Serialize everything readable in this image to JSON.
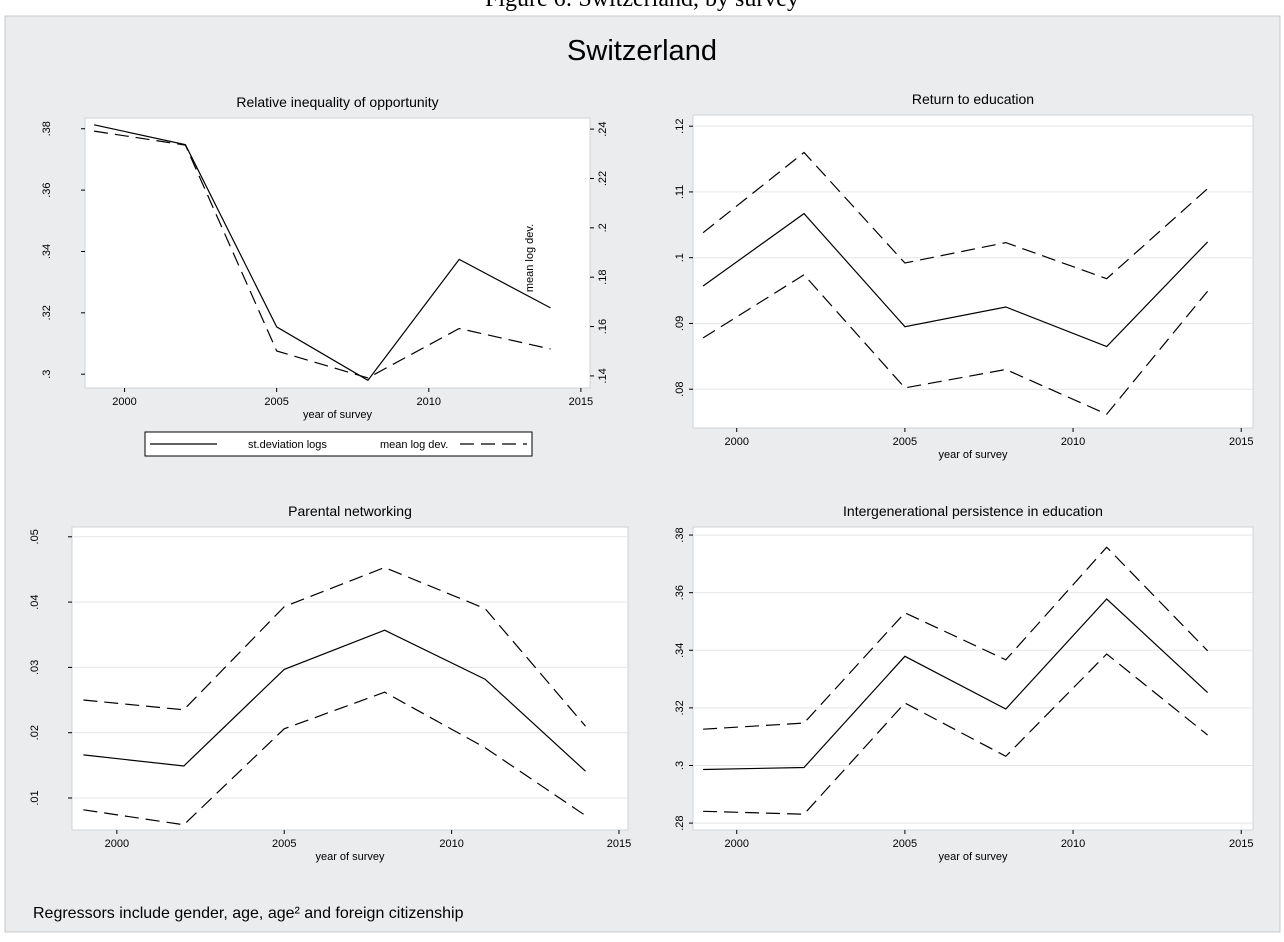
{
  "caption": "Figure 6: Switzerland, by survey",
  "title": "Switzerland",
  "note": "Regressors include gender, age, age² and foreign citizenship",
  "chart_data": [
    {
      "type": "line",
      "title": "Relative inequality of opportunity",
      "xlabel": "year of survey",
      "y2label": "mean log dev.",
      "x": [
        1999,
        2002,
        2005,
        2008,
        2011,
        2014
      ],
      "xlim": [
        1998.7,
        2015.3
      ],
      "xticks": [
        2000,
        2005,
        2010,
        2015
      ],
      "ylim": [
        0.2955,
        0.3835
      ],
      "yticks": [
        {
          "value": 0.3,
          "label": ".3"
        },
        {
          "value": 0.32,
          "label": ".32"
        },
        {
          "value": 0.34,
          "label": ".34"
        },
        {
          "value": 0.36,
          "label": ".36"
        },
        {
          "value": 0.38,
          "label": ".38"
        }
      ],
      "y2lim": [
        0.1351,
        0.2445
      ],
      "y2ticks": [
        {
          "value": 0.14,
          "label": ".14"
        },
        {
          "value": 0.16,
          "label": ".16"
        },
        {
          "value": 0.18,
          "label": ".18"
        },
        {
          "value": 0.2,
          "label": ".2"
        },
        {
          "value": 0.22,
          "label": ".22"
        },
        {
          "value": 0.24,
          "label": ".24"
        }
      ],
      "grid": false,
      "legend": "bottom",
      "series": [
        {
          "name": "st.deviation logs",
          "color": "#000000",
          "style": "solid",
          "values": [
            0.3813,
            0.3748,
            0.3154,
            0.298,
            0.3374,
            0.3216
          ]
        },
        {
          "name": "mean log dev.",
          "color": "#000000",
          "style": "dashed",
          "axis": "y2",
          "values": [
            0.2392,
            0.2335,
            0.1501,
            0.1392,
            0.1592,
            0.1509
          ]
        }
      ]
    },
    {
      "type": "line",
      "title": "Return to education",
      "xlabel": "year of survey",
      "x": [
        1999,
        2002,
        2005,
        2008,
        2011,
        2014
      ],
      "xlim": [
        1998.7,
        2015.35
      ],
      "xticks": [
        2000,
        2005,
        2010,
        2015
      ],
      "ylim": [
        0.0741,
        0.1217
      ],
      "yticks": [
        {
          "value": 0.08,
          "label": ".08"
        },
        {
          "value": 0.09,
          "label": ".09"
        },
        {
          "value": 0.1,
          "label": ".1"
        },
        {
          "value": 0.11,
          "label": ".11"
        },
        {
          "value": 0.12,
          "label": ".12"
        }
      ],
      "grid": true,
      "series": [
        {
          "color": "#000000",
          "style": "solid",
          "values": [
            0.0957,
            0.1067,
            0.0895,
            0.0925,
            0.0865,
            0.1024
          ]
        },
        {
          "color": "#000000",
          "style": "dashed",
          "values": [
            0.1038,
            0.116,
            0.0992,
            0.1023,
            0.0968,
            0.1105
          ]
        },
        {
          "color": "#000000",
          "style": "dashed",
          "values": [
            0.0878,
            0.0974,
            0.0802,
            0.083,
            0.0762,
            0.0949
          ]
        }
      ]
    },
    {
      "type": "line",
      "title": "Parental networking",
      "xlabel": "year of survey",
      "x": [
        1999,
        2002,
        2005,
        2008,
        2011,
        2014
      ],
      "xlim": [
        1998.66,
        2015.27
      ],
      "xticks": [
        2000,
        2005,
        2010,
        2015
      ],
      "ylim": [
        0.0051,
        0.0515
      ],
      "yticks": [
        {
          "value": 0.01,
          "label": ".01"
        },
        {
          "value": 0.02,
          "label": ".02"
        },
        {
          "value": 0.03,
          "label": ".03"
        },
        {
          "value": 0.04,
          "label": ".04"
        },
        {
          "value": 0.05,
          "label": ".05"
        }
      ],
      "grid": true,
      "series": [
        {
          "color": "#000000",
          "style": "solid",
          "values": [
            0.0166,
            0.0149,
            0.0297,
            0.0357,
            0.0282,
            0.0141
          ]
        },
        {
          "color": "#000000",
          "style": "dashed",
          "values": [
            0.025,
            0.0235,
            0.0393,
            0.0453,
            0.039,
            0.021
          ]
        },
        {
          "color": "#000000",
          "style": "dashed",
          "values": [
            0.0082,
            0.0059,
            0.0206,
            0.0262,
            0.0177,
            0.0073
          ]
        }
      ]
    },
    {
      "type": "line",
      "title": "Intergenerational persistence in education",
      "xlabel": "year of survey",
      "x": [
        1999,
        2002,
        2005,
        2008,
        2011,
        2014
      ],
      "xlim": [
        1998.7,
        2015.35
      ],
      "xticks": [
        2000,
        2005,
        2010,
        2015
      ],
      "ylim": [
        0.2776,
        0.3828
      ],
      "yticks": [
        {
          "value": 0.28,
          "label": ".28"
        },
        {
          "value": 0.3,
          "label": ".3"
        },
        {
          "value": 0.32,
          "label": ".32"
        },
        {
          "value": 0.34,
          "label": ".34"
        },
        {
          "value": 0.36,
          "label": ".36"
        },
        {
          "value": 0.38,
          "label": ".38"
        }
      ],
      "grid": true,
      "series": [
        {
          "color": "#000000",
          "style": "solid",
          "values": [
            0.2986,
            0.2993,
            0.3379,
            0.3196,
            0.3578,
            0.3253
          ]
        },
        {
          "color": "#000000",
          "style": "dashed",
          "values": [
            0.3126,
            0.3147,
            0.353,
            0.3367,
            0.3758,
            0.3398
          ]
        },
        {
          "color": "#000000",
          "style": "dashed",
          "values": [
            0.2841,
            0.2831,
            0.3217,
            0.3032,
            0.3387,
            0.3106
          ]
        }
      ]
    }
  ]
}
